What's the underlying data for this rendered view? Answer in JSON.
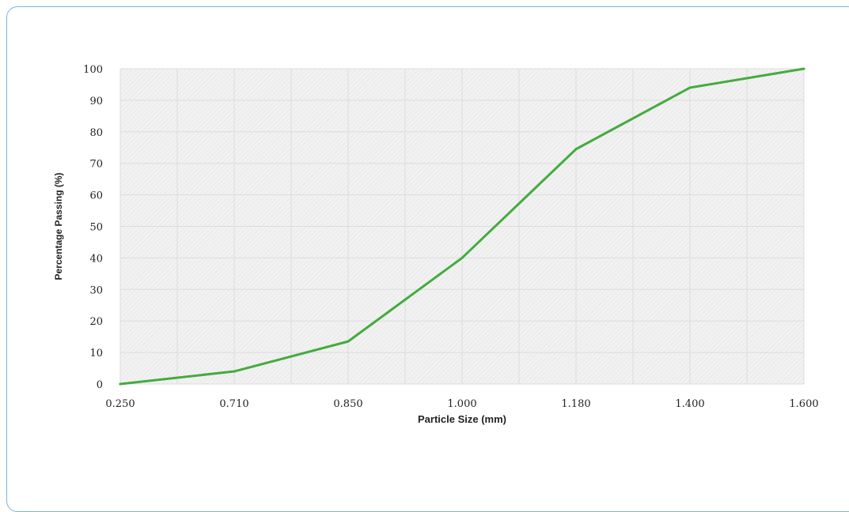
{
  "chart_data": {
    "type": "line",
    "title": "",
    "xlabel": "Particle Size (mm)",
    "ylabel": "Percentage Passing (%)",
    "x": [
      "0.250",
      "0.710",
      "0.850",
      "1.000",
      "1.180",
      "1.400",
      "1.600"
    ],
    "series": [
      {
        "values": [
          0,
          4,
          13.5,
          40,
          74.5,
          94,
          100
        ]
      }
    ],
    "ylim": [
      0,
      100
    ],
    "yticks": [
      "0",
      "10",
      "20",
      "30",
      "40",
      "50",
      "60",
      "70",
      "80",
      "90",
      "100"
    ],
    "grid": true,
    "legend": "none",
    "colors": {
      "line": "#44ab3f",
      "plot_background": "#f3f3f3",
      "gridline": "#dcdcdc",
      "frame_border": "#7fb1e0"
    }
  }
}
